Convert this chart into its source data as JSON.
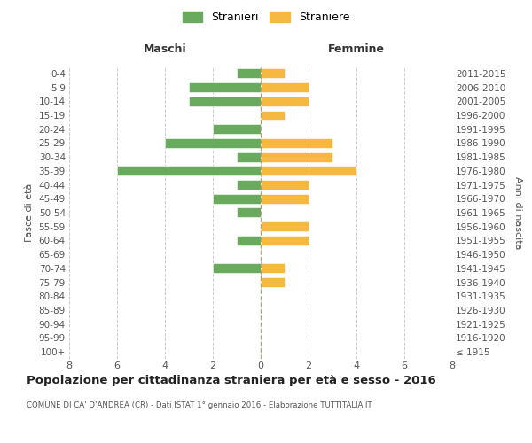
{
  "age_groups": [
    "100+",
    "95-99",
    "90-94",
    "85-89",
    "80-84",
    "75-79",
    "70-74",
    "65-69",
    "60-64",
    "55-59",
    "50-54",
    "45-49",
    "40-44",
    "35-39",
    "30-34",
    "25-29",
    "20-24",
    "15-19",
    "10-14",
    "5-9",
    "0-4"
  ],
  "birth_years": [
    "≤ 1915",
    "1916-1920",
    "1921-1925",
    "1926-1930",
    "1931-1935",
    "1936-1940",
    "1941-1945",
    "1946-1950",
    "1951-1955",
    "1956-1960",
    "1961-1965",
    "1966-1970",
    "1971-1975",
    "1976-1980",
    "1981-1985",
    "1986-1990",
    "1991-1995",
    "1996-2000",
    "2001-2005",
    "2006-2010",
    "2011-2015"
  ],
  "maschi": [
    0,
    0,
    0,
    0,
    0,
    0,
    2,
    0,
    1,
    0,
    1,
    2,
    1,
    6,
    1,
    4,
    2,
    0,
    3,
    3,
    1
  ],
  "femmine": [
    0,
    0,
    0,
    0,
    0,
    1,
    1,
    0,
    2,
    2,
    0,
    2,
    2,
    4,
    3,
    3,
    0,
    1,
    2,
    2,
    1
  ],
  "color_maschi": "#6aaa5e",
  "color_femmine": "#f5b942",
  "background_color": "#ffffff",
  "grid_color": "#cccccc",
  "title": "Popolazione per cittadinanza straniera per età e sesso - 2016",
  "subtitle": "COMUNE DI CA' D'ANDREA (CR) - Dati ISTAT 1° gennaio 2016 - Elaborazione TUTTITALIA.IT",
  "ylabel_left": "Fasce di età",
  "ylabel_right": "Anni di nascita",
  "xlabel_maschi": "Maschi",
  "xlabel_femmine": "Femmine",
  "legend_stranieri": "Stranieri",
  "legend_straniere": "Straniere",
  "xlim": 8
}
